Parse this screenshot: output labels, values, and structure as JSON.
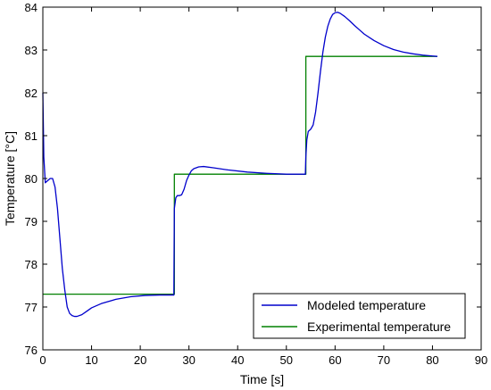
{
  "chart_data": {
    "type": "line",
    "title": "",
    "xlabel": "Time [s]",
    "ylabel": "Temperature [°C]",
    "xlim": [
      0,
      90
    ],
    "ylim": [
      76,
      84
    ],
    "xticks": [
      0,
      10,
      20,
      30,
      40,
      50,
      60,
      70,
      80,
      90
    ],
    "yticks": [
      76,
      77,
      78,
      79,
      80,
      81,
      82,
      83,
      84
    ],
    "grid": false,
    "legend_position": "bottom-right",
    "series": [
      {
        "name": "Modeled temperature",
        "color": "#0000cc",
        "x": [
          0,
          0.2,
          0.5,
          1.0,
          1.5,
          2.0,
          2.5,
          3.0,
          3.5,
          4.0,
          4.5,
          5.0,
          5.5,
          6.0,
          6.5,
          7.0,
          8.0,
          9.0,
          10.0,
          12.0,
          15.0,
          18.0,
          21.0,
          24.0,
          26.9,
          27.0,
          27.3,
          27.6,
          28.0,
          28.5,
          29.0,
          29.5,
          30.0,
          30.5,
          31.0,
          32.0,
          33.0,
          35.0,
          38.0,
          42.0,
          46.0,
          50.0,
          53.9,
          54.0,
          54.2,
          54.5,
          55.0,
          55.5,
          56.0,
          56.5,
          57.0,
          57.5,
          58.0,
          58.5,
          59.0,
          59.5,
          60.0,
          60.5,
          61.0,
          62.0,
          63.0,
          64.0,
          65.0,
          66.0,
          68.0,
          70.0,
          72.0,
          74.0,
          76.0,
          78.0,
          80.0,
          81.0
        ],
        "values": [
          82.0,
          80.5,
          79.9,
          79.95,
          80.0,
          80.0,
          79.8,
          79.3,
          78.6,
          77.9,
          77.4,
          77.0,
          76.85,
          76.8,
          76.78,
          76.78,
          76.82,
          76.9,
          76.98,
          77.08,
          77.18,
          77.24,
          77.27,
          77.28,
          77.28,
          79.3,
          79.55,
          79.6,
          79.6,
          79.62,
          79.75,
          79.95,
          80.08,
          80.18,
          80.23,
          80.27,
          80.28,
          80.25,
          80.2,
          80.15,
          80.12,
          80.1,
          80.1,
          80.5,
          80.9,
          81.1,
          81.15,
          81.25,
          81.55,
          82.0,
          82.5,
          82.95,
          83.3,
          83.55,
          83.72,
          83.83,
          83.87,
          83.88,
          83.86,
          83.78,
          83.68,
          83.57,
          83.47,
          83.37,
          83.22,
          83.1,
          83.01,
          82.95,
          82.91,
          82.88,
          82.86,
          82.85
        ]
      },
      {
        "name": "Experimental temperature",
        "color": "#008000",
        "x": [
          0,
          27,
          27,
          54,
          54,
          81
        ],
        "values": [
          77.3,
          77.3,
          80.1,
          80.1,
          82.85,
          82.85
        ]
      }
    ]
  }
}
